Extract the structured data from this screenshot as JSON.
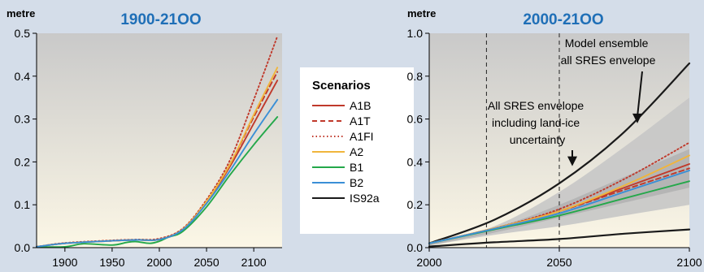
{
  "chart_data": [
    {
      "type": "line",
      "unit_label": "metre",
      "title": "1900-21OO",
      "xlim": [
        1870,
        2130
      ],
      "ylim": [
        0,
        0.5
      ],
      "xticks": [
        1900,
        1950,
        2000,
        2050,
        2100
      ],
      "yticks": [
        "0.0",
        "0.1",
        "0.2",
        "0.3",
        "0.4",
        "0.5"
      ],
      "series": [
        {
          "name": "A1B",
          "color": "#c0392b",
          "dash": "solid",
          "x": [
            1870,
            1900,
            1950,
            1975,
            2000,
            2025,
            2050,
            2075,
            2100,
            2125
          ],
          "y": [
            0.002,
            0.01,
            0.016,
            0.018,
            0.019,
            0.042,
            0.105,
            0.19,
            0.29,
            0.39
          ]
        },
        {
          "name": "A1T",
          "color": "#c0392b",
          "dash": "dashed",
          "x": [
            1870,
            1900,
            1950,
            1975,
            2000,
            2025,
            2050,
            2075,
            2100,
            2125
          ],
          "y": [
            0.002,
            0.01,
            0.016,
            0.018,
            0.019,
            0.043,
            0.108,
            0.195,
            0.305,
            0.41
          ]
        },
        {
          "name": "A1FI",
          "color": "#c0392b",
          "dash": "dotted",
          "x": [
            1870,
            1900,
            1950,
            1975,
            2000,
            2025,
            2050,
            2075,
            2100,
            2125
          ],
          "y": [
            0.002,
            0.011,
            0.017,
            0.019,
            0.021,
            0.045,
            0.112,
            0.205,
            0.345,
            0.493
          ]
        },
        {
          "name": "A2",
          "color": "#f0b53c",
          "dash": "solid",
          "x": [
            1870,
            1900,
            1950,
            1975,
            2000,
            2025,
            2050,
            2075,
            2100,
            2125
          ],
          "y": [
            0.002,
            0.01,
            0.016,
            0.018,
            0.019,
            0.043,
            0.108,
            0.195,
            0.31,
            0.42
          ]
        },
        {
          "name": "B1",
          "color": "#24a84a",
          "dash": "solid",
          "x": [
            1870,
            1900,
            1920,
            1950,
            1965,
            1975,
            1990,
            2000,
            2010,
            2025,
            2050,
            2075,
            2100,
            2125
          ],
          "y": [
            0.002,
            0.002,
            0.009,
            0.006,
            0.012,
            0.014,
            0.01,
            0.015,
            0.025,
            0.038,
            0.095,
            0.17,
            0.24,
            0.305
          ]
        },
        {
          "name": "B2",
          "color": "#3a8fd6",
          "dash": "solid",
          "x": [
            1870,
            1900,
            1950,
            1975,
            2000,
            2025,
            2050,
            2075,
            2100,
            2125
          ],
          "y": [
            0.002,
            0.01,
            0.016,
            0.018,
            0.019,
            0.042,
            0.103,
            0.18,
            0.265,
            0.345
          ]
        }
      ]
    },
    {
      "type": "line",
      "unit_label": "metre",
      "title": "2000-21OO",
      "xlim": [
        2000,
        2100
      ],
      "ylim": [
        0,
        1.0
      ],
      "xticks": [
        2000,
        2050,
        2100
      ],
      "yticks": [
        "0.0",
        "0.2",
        "0.4",
        "0.6",
        "0.8",
        "1.0"
      ],
      "vlines": [
        2022,
        2050
      ],
      "envelope_outer": {
        "x": [
          2000,
          2025,
          2050,
          2075,
          2100
        ],
        "upper": [
          0.02,
          0.1,
          0.26,
          0.47,
          0.7
        ],
        "lower": [
          0.01,
          0.06,
          0.1,
          0.15,
          0.2
        ],
        "color": "#c6c6c6"
      },
      "envelope_inner": {
        "x": [
          2000,
          2025,
          2050,
          2075,
          2100
        ],
        "upper": [
          0.02,
          0.09,
          0.2,
          0.33,
          0.46
        ],
        "lower": [
          0.01,
          0.07,
          0.14,
          0.21,
          0.28
        ],
        "color": "#b3b3b3"
      },
      "series": [
        {
          "name": "IS92a upper",
          "color": "#1a1a1a",
          "dash": "solid",
          "x": [
            2000,
            2025,
            2050,
            2075,
            2100
          ],
          "y": [
            0.02,
            0.13,
            0.3,
            0.54,
            0.86
          ]
        },
        {
          "name": "IS92a lower",
          "color": "#1a1a1a",
          "dash": "solid",
          "x": [
            2000,
            2025,
            2050,
            2075,
            2100
          ],
          "y": [
            0.005,
            0.025,
            0.04,
            0.065,
            0.085
          ]
        },
        {
          "name": "A1B",
          "color": "#c0392b",
          "dash": "solid",
          "x": [
            2000,
            2025,
            2050,
            2075,
            2100
          ],
          "y": [
            0.02,
            0.09,
            0.17,
            0.28,
            0.39
          ]
        },
        {
          "name": "A1T",
          "color": "#c0392b",
          "dash": "dashed",
          "x": [
            2000,
            2025,
            2050,
            2075,
            2100
          ],
          "y": [
            0.02,
            0.09,
            0.17,
            0.27,
            0.37
          ]
        },
        {
          "name": "A1FI",
          "color": "#c0392b",
          "dash": "dotted",
          "x": [
            2000,
            2025,
            2050,
            2075,
            2100
          ],
          "y": [
            0.02,
            0.09,
            0.18,
            0.32,
            0.49
          ]
        },
        {
          "name": "A2",
          "color": "#f0b53c",
          "dash": "solid",
          "x": [
            2000,
            2025,
            2050,
            2075,
            2100
          ],
          "y": [
            0.02,
            0.09,
            0.17,
            0.29,
            0.43
          ]
        },
        {
          "name": "B1",
          "color": "#24a84a",
          "dash": "solid",
          "x": [
            2000,
            2025,
            2050,
            2075,
            2100
          ],
          "y": [
            0.02,
            0.085,
            0.15,
            0.23,
            0.31
          ]
        },
        {
          "name": "B2",
          "color": "#3a8fd6",
          "dash": "solid",
          "x": [
            2000,
            2025,
            2050,
            2075,
            2100
          ],
          "y": [
            0.02,
            0.088,
            0.16,
            0.26,
            0.36
          ]
        }
      ],
      "annotations": [
        {
          "lines": [
            "Model ensemble",
            "all SRES envelope"
          ],
          "arrow_to": [
            2080,
            0.58
          ]
        },
        {
          "lines": [
            "All SRES envelope",
            "including land-ice",
            "uncertainty"
          ],
          "arrow_to": [
            2055,
            0.38
          ]
        }
      ]
    }
  ],
  "legend": {
    "title": "Scenarios",
    "items": [
      {
        "label": "A1B",
        "color": "#c0392b",
        "dash": "solid"
      },
      {
        "label": "A1T",
        "color": "#c0392b",
        "dash": "dashed"
      },
      {
        "label": "A1FI",
        "color": "#c0392b",
        "dash": "dotted"
      },
      {
        "label": "A2",
        "color": "#f0b53c",
        "dash": "solid"
      },
      {
        "label": "B1",
        "color": "#24a84a",
        "dash": "solid"
      },
      {
        "label": "B2",
        "color": "#3a8fd6",
        "dash": "solid"
      },
      {
        "label": "IS92a",
        "color": "#1a1a1a",
        "dash": "solid"
      }
    ]
  }
}
